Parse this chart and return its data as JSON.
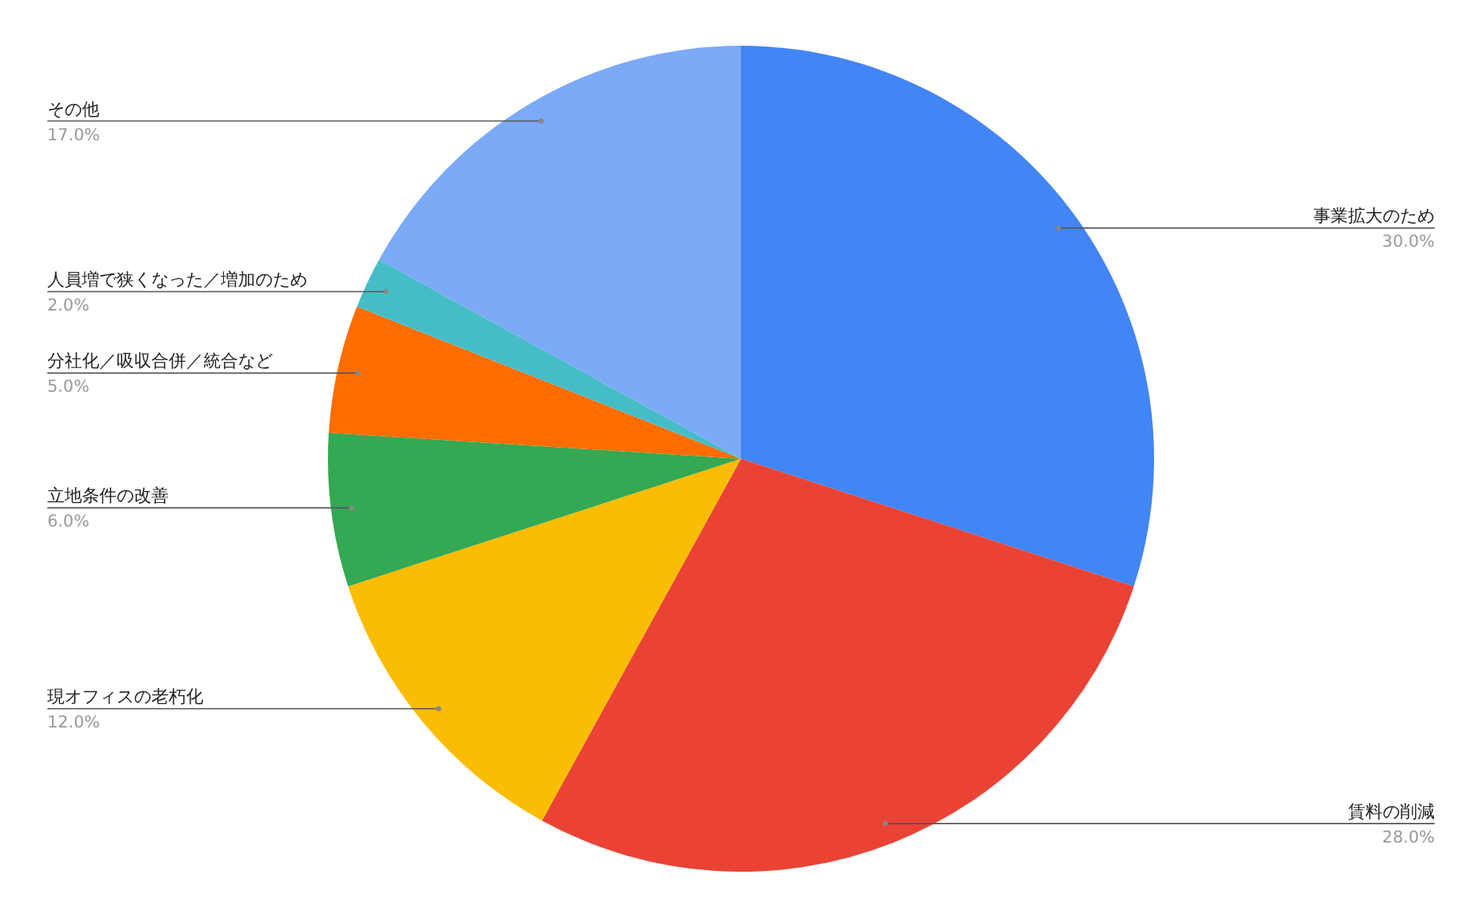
{
  "chart_data": {
    "type": "pie",
    "categories": [
      "事業拡大のため",
      "賃料の削減",
      "現オフィスの老朽化",
      "立地条件の改善",
      "分社化／吸収合併／統合など",
      "人員増で狭くなった／増加のため",
      "その他"
    ],
    "values": [
      30,
      28,
      12,
      6,
      5,
      2,
      17
    ],
    "colors": [
      "#4285f4",
      "#ea4335",
      "#fbbc04",
      "#34a853",
      "#ff6d01",
      "#46bdc6",
      "#7baaf7"
    ],
    "value_labels": [
      "30.0%",
      "28.0%",
      "12.0%",
      "6.0%",
      "5.0%",
      "2.0%",
      "17.0%"
    ]
  }
}
